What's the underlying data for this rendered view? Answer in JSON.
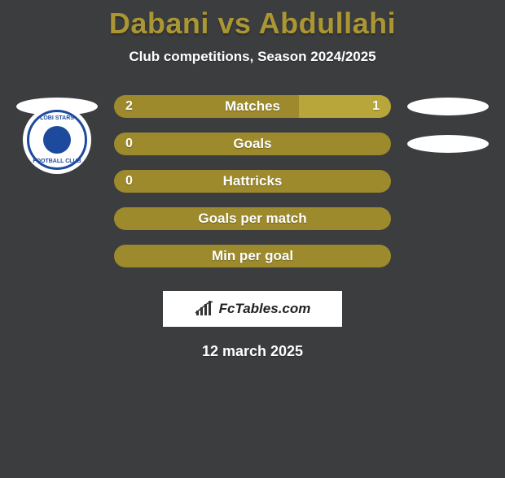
{
  "title": {
    "player1": "Dabani",
    "vs": "vs",
    "player2": "Abdullahi",
    "color": "#aa9632"
  },
  "subtitle": "Club competitions, Season 2024/2025",
  "background_color": "#3c3d3f",
  "bar": {
    "track_width": 340,
    "height": 28,
    "border_radius": 14,
    "p1_color": "#9d8a2c",
    "p2_color": "#b8a63a",
    "empty_color": "#9d8a2c",
    "label_fontsize": 17,
    "value_fontsize": 16
  },
  "stats": [
    {
      "label": "Matches",
      "p1_value": 2,
      "p2_value": 1,
      "p1_text": "2",
      "p2_text": "1",
      "show_values": true
    },
    {
      "label": "Goals",
      "p1_value": 0,
      "p2_value": 0,
      "p1_text": "0",
      "p2_text": "",
      "show_values": true
    },
    {
      "label": "Hattricks",
      "p1_value": 0,
      "p2_value": 0,
      "p1_text": "0",
      "p2_text": "",
      "show_values": true
    },
    {
      "label": "Goals per match",
      "p1_value": 0,
      "p2_value": 0,
      "p1_text": "",
      "p2_text": "",
      "show_values": false
    },
    {
      "label": "Min per goal",
      "p1_value": 0,
      "p2_value": 0,
      "p1_text": "",
      "p2_text": "",
      "show_values": false
    }
  ],
  "side_markers": {
    "pill_color": "#ffffff",
    "left_row1": "pill",
    "right_row1": "pill",
    "left_row2": "club",
    "right_row2": "pill",
    "club_name_top": "LOBI STARS",
    "club_name_bot": "FOOTBALL CLUB"
  },
  "brand": {
    "text": "FcTables.com",
    "box_bg": "#ffffff",
    "text_color": "#222222"
  },
  "date": "12 march 2025"
}
